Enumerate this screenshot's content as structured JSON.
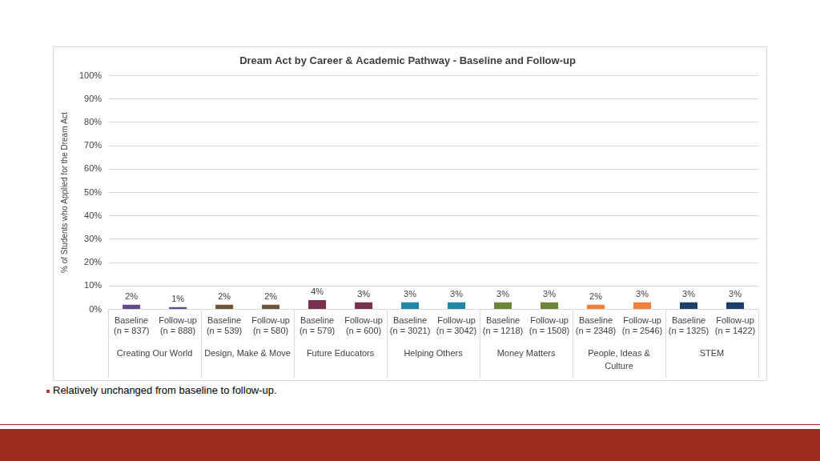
{
  "chart_data": {
    "type": "bar",
    "title": "Dream Act by Career & Academic Pathway - Baseline and Follow-up",
    "y_label": "% of Students who Applied for the Dream Act",
    "annotation": "Relatively unchanged from baseline to follow-up.",
    "categories": [
      [
        "Baseline",
        "(n = 837)"
      ],
      [
        "Follow-up",
        "(n = 888)"
      ],
      [
        "Baseline",
        "(n = 539)"
      ],
      [
        "Follow-up",
        "(n = 580)"
      ],
      [
        "Baseline",
        "(n = 579)"
      ],
      [
        "Follow-up",
        "(n = 600)"
      ],
      [
        "Baseline",
        "(n = 3021)"
      ],
      [
        "Follow-up",
        "(n = 3042)"
      ],
      [
        "Baseline",
        "(n = 1218)"
      ],
      [
        "Follow-up",
        "(n = 1508)"
      ],
      [
        "Baseline",
        "(n = 2348)"
      ],
      [
        "Follow-up",
        "(n = 2546)"
      ],
      [
        "Baseline",
        "(n = 1325)"
      ],
      [
        "Follow-up",
        "(n = 1422)"
      ]
    ],
    "groups": [
      "Creating Our World",
      "Design, Make & Move",
      "Future Educators",
      "Helping Others",
      "Money Matters",
      "People, Ideas & Culture",
      "STEM"
    ],
    "values": [
      2,
      1,
      2,
      2,
      4,
      3,
      3,
      3,
      3,
      3,
      2,
      3,
      3,
      3
    ],
    "value_labels": [
      "2%",
      "1%",
      "2%",
      "2%",
      "4%",
      "3%",
      "3%",
      "3%",
      "3%",
      "3%",
      "2%",
      "3%",
      "3%",
      "3%"
    ],
    "colors": [
      "#5f4b8b",
      "#5f4b8b",
      "#6e5438",
      "#6e5438",
      "#7a2e50",
      "#7a2e50",
      "#1f86a5",
      "#1f86a5",
      "#6b8636",
      "#6b8636",
      "#f07f3a",
      "#f07f3a",
      "#213f6b",
      "#213f6b"
    ],
    "data_labels": true,
    "grid": true,
    "ylim": [
      0,
      100
    ],
    "yticks": [
      {
        "value": 0,
        "label": "0%"
      },
      {
        "value": 10,
        "label": "10%"
      },
      {
        "value": 20,
        "label": "20%"
      },
      {
        "value": 30,
        "label": "30%"
      },
      {
        "value": 40,
        "label": "40%"
      },
      {
        "value": 50,
        "label": "50%"
      },
      {
        "value": 60,
        "label": "60%"
      },
      {
        "value": 70,
        "label": "70%"
      },
      {
        "value": 80,
        "label": "80%"
      },
      {
        "value": 90,
        "label": "90%"
      },
      {
        "value": 100,
        "label": "100%"
      }
    ]
  }
}
